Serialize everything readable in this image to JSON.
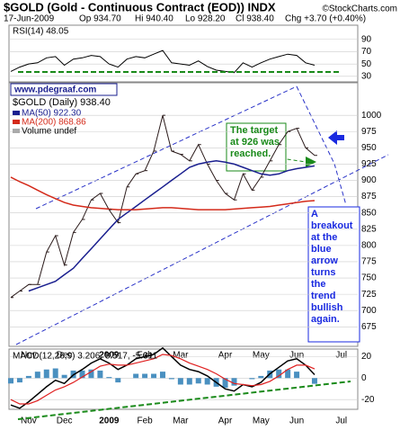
{
  "header": {
    "symbol_title": "$GOLD (Gold - Continuous Contract (EOD)) INDX",
    "source": "©StockCharts.com",
    "date": "17-Jun-2009",
    "open": "Op 934.70",
    "high": "Hi 940.40",
    "low": "Lo 928.20",
    "close": "Cl 938.40",
    "change": "Chg +3.70 (+0.40%)",
    "website": "www.pdegraaf.com"
  },
  "chart_data": [
    {
      "type": "line",
      "name": "rsi",
      "label": "RSI(14) 48.05",
      "ylim": [
        21,
        113
      ],
      "yticks": [
        30,
        50,
        70,
        90
      ],
      "color": "#000",
      "categories": [
        null,
        null,
        "Nov",
        null,
        null,
        null,
        "Dec",
        null,
        null,
        null,
        null,
        "2009",
        null,
        null,
        null,
        "Feb",
        null,
        null,
        null,
        "Mar",
        null,
        null,
        null,
        null,
        "Apr",
        null,
        null,
        null,
        "May",
        null,
        null,
        null,
        "Jun",
        null,
        null,
        null,
        null,
        "Jul"
      ],
      "values": [
        38,
        45,
        50,
        52,
        60,
        62,
        48,
        58,
        60,
        64,
        62,
        50,
        45,
        58,
        62,
        60,
        66,
        72,
        52,
        50,
        48,
        55,
        46,
        40,
        38,
        36,
        52,
        45,
        52,
        58,
        62,
        66,
        64,
        52,
        48.05,
        null,
        null,
        null
      ]
    },
    {
      "type": "line",
      "name": "price",
      "ylim": [
        645,
        1050
      ],
      "yticks": [
        675,
        700,
        725,
        750,
        775,
        800,
        825,
        850,
        875,
        900,
        925,
        950,
        975,
        1000
      ],
      "grid": true,
      "categories": [
        null,
        null,
        "Nov",
        null,
        null,
        null,
        "Dec",
        null,
        null,
        null,
        null,
        "2009",
        null,
        null,
        null,
        "Feb",
        null,
        null,
        null,
        "Mar",
        null,
        null,
        null,
        null,
        "Apr",
        null,
        null,
        null,
        "May",
        null,
        null,
        null,
        "Jun",
        null,
        null,
        null,
        null,
        "Jul"
      ],
      "series": [
        {
          "name": "$GOLD (Daily) 938.40",
          "color": "#2a1a1a",
          "values": [
            720,
            730,
            740,
            740,
            790,
            815,
            770,
            820,
            840,
            870,
            880,
            855,
            835,
            890,
            910,
            915,
            945,
            1000,
            945,
            940,
            930,
            955,
            925,
            900,
            880,
            870,
            910,
            885,
            905,
            930,
            955,
            975,
            980,
            950,
            938.4,
            null,
            null,
            null
          ]
        },
        {
          "name": "MA(50) 922.30",
          "color": "#1a1f8f",
          "values": [
            null,
            null,
            730,
            735,
            740,
            745,
            755,
            765,
            780,
            795,
            810,
            825,
            840,
            850,
            860,
            870,
            880,
            890,
            900,
            910,
            920,
            925,
            928,
            930,
            928,
            925,
            920,
            915,
            910,
            908,
            910,
            915,
            918,
            920,
            922.3,
            null,
            null,
            null
          ]
        },
        {
          "name": "MA(200) 868.86",
          "color": "#d42a1a",
          "values": [
            905,
            898,
            892,
            885,
            878,
            872,
            866,
            862,
            860,
            858,
            857,
            856,
            855,
            855,
            855,
            856,
            857,
            858,
            858,
            857,
            856,
            855,
            855,
            855,
            855,
            856,
            857,
            858,
            859,
            860,
            862,
            864,
            866,
            868,
            868.86,
            null,
            null,
            null
          ]
        }
      ],
      "volume_label": "Volume undef",
      "annotations": [
        "The target at 926 was reached.",
        "A breakout at the blue arrow turns the trend bullish again."
      ]
    },
    {
      "type": "macd",
      "label": "MACD(12,26,9) 3.206, 8.517, -5.311",
      "ylim": [
        -29,
        27
      ],
      "yticks": [
        -20,
        0,
        20
      ],
      "categories": [
        null,
        null,
        "Nov",
        null,
        null,
        null,
        "Dec",
        null,
        null,
        null,
        null,
        "2009",
        null,
        null,
        null,
        "Feb",
        null,
        null,
        null,
        "Mar",
        null,
        null,
        null,
        null,
        "Apr",
        null,
        null,
        null,
        "May",
        null,
        null,
        null,
        "Jun",
        null,
        null,
        null,
        null,
        "Jul"
      ],
      "series": [
        {
          "name": "MACD",
          "color": "#000",
          "values": [
            -25,
            -28,
            -22,
            -15,
            -8,
            -2,
            -5,
            3,
            8,
            14,
            18,
            14,
            8,
            12,
            18,
            20,
            22,
            28,
            20,
            12,
            8,
            6,
            2,
            -4,
            -10,
            -12,
            -6,
            -8,
            -4,
            4,
            10,
            16,
            18,
            12,
            3.206,
            null,
            null,
            null
          ]
        },
        {
          "name": "Signal",
          "color": "#e02020",
          "values": [
            -20,
            -24,
            -24,
            -21,
            -16,
            -11,
            -8,
            -4,
            1,
            6,
            11,
            13,
            12,
            12,
            14,
            16,
            18,
            22,
            21,
            18,
            14,
            11,
            8,
            4,
            -1,
            -5,
            -6,
            -7,
            -6,
            -3,
            2,
            8,
            12,
            12,
            8.517,
            null,
            null,
            null
          ]
        },
        {
          "name": "Histogram",
          "color": "#4a90c0",
          "values": [
            -5,
            -4,
            2,
            6,
            8,
            9,
            3,
            7,
            7,
            8,
            7,
            1,
            -4,
            0,
            4,
            4,
            4,
            6,
            -1,
            -6,
            -6,
            -5,
            -6,
            -8,
            -9,
            -7,
            0,
            -1,
            2,
            7,
            8,
            8,
            6,
            0,
            -5.311,
            null,
            null,
            null
          ]
        }
      ]
    }
  ]
}
